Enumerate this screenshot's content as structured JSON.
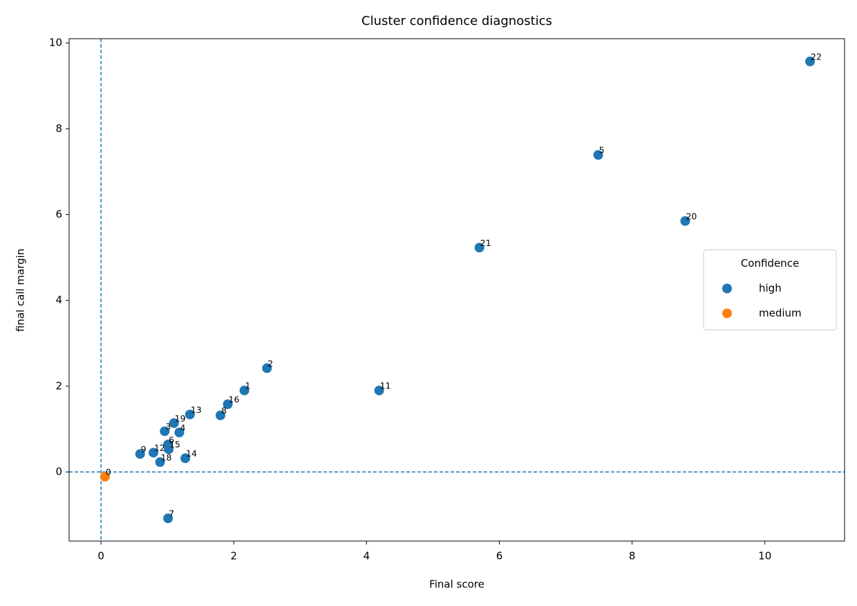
{
  "chart_data": {
    "type": "scatter",
    "title": "Cluster confidence diagnostics",
    "x_label": "Final score",
    "y_label": "final call margin",
    "xlim": [
      -0.48,
      11.2
    ],
    "ylim": [
      -1.61,
      10.1
    ],
    "xticks": [
      0,
      2,
      4,
      6,
      8,
      10
    ],
    "yticks": [
      0,
      2,
      4,
      6,
      8,
      10
    ],
    "reference_lines": {
      "x": 0,
      "y": 0
    },
    "reference_color": "#1f77b4",
    "legend_title": "Confidence",
    "legend_loc": "center right",
    "series": [
      {
        "name": "high",
        "color": "#1f77b4",
        "labels": [
          "1",
          "2",
          "3",
          "4",
          "5",
          "6",
          "7",
          "8",
          "9",
          "11",
          "12",
          "13",
          "14",
          "15",
          "16",
          "18",
          "19",
          "20",
          "21",
          "22"
        ],
        "x": [
          2.16,
          2.5,
          0.96,
          1.18,
          7.49,
          1.01,
          1.01,
          1.8,
          0.59,
          4.19,
          0.79,
          1.34,
          1.27,
          1.02,
          1.91,
          0.89,
          1.1,
          8.8,
          5.7,
          10.68
        ],
        "values": [
          1.9,
          2.42,
          0.95,
          0.92,
          7.39,
          0.64,
          -1.08,
          1.32,
          0.42,
          1.9,
          0.45,
          1.34,
          0.32,
          0.53,
          1.58,
          0.23,
          1.14,
          5.85,
          5.23,
          9.57
        ]
      },
      {
        "name": "medium",
        "color": "#ff7f0e",
        "labels": [
          "0"
        ],
        "x": [
          0.06
        ],
        "values": [
          -0.11
        ]
      }
    ]
  }
}
